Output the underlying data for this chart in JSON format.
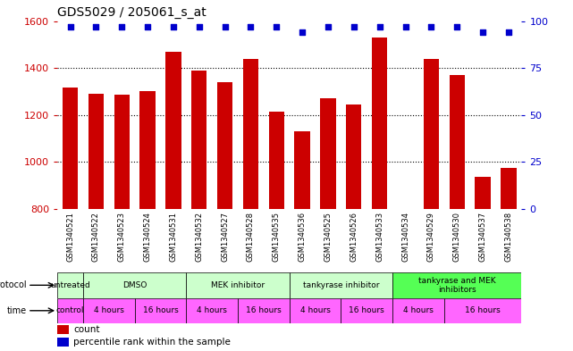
{
  "title": "GDS5029 / 205061_s_at",
  "samples": [
    "GSM1340521",
    "GSM1340522",
    "GSM1340523",
    "GSM1340524",
    "GSM1340531",
    "GSM1340532",
    "GSM1340527",
    "GSM1340528",
    "GSM1340535",
    "GSM1340536",
    "GSM1340525",
    "GSM1340526",
    "GSM1340533",
    "GSM1340534",
    "GSM1340529",
    "GSM1340530",
    "GSM1340537",
    "GSM1340538"
  ],
  "counts": [
    1315,
    1290,
    1285,
    1300,
    1470,
    1390,
    1340,
    1440,
    1215,
    1130,
    1270,
    1245,
    1530,
    800,
    1440,
    1370,
    935,
    975
  ],
  "percentiles": [
    97,
    97,
    97,
    97,
    97,
    97,
    97,
    97,
    97,
    94,
    97,
    97,
    97,
    97,
    97,
    97,
    94,
    94
  ],
  "ylim_left": [
    800,
    1600
  ],
  "ylim_right": [
    0,
    100
  ],
  "yticks_left": [
    800,
    1000,
    1200,
    1400,
    1600
  ],
  "yticks_right": [
    0,
    25,
    50,
    75,
    100
  ],
  "bar_color": "#cc0000",
  "dot_color": "#0000cc",
  "grid_yticks": [
    1000,
    1200,
    1400
  ],
  "bg_color": "#ffffff",
  "label_color_left": "#cc0000",
  "label_color_right": "#0000cc",
  "protocol_groups": [
    {
      "label": "untreated",
      "start": 0,
      "end": 1,
      "color": "#ccffcc"
    },
    {
      "label": "DMSO",
      "start": 1,
      "end": 5,
      "color": "#ccffcc"
    },
    {
      "label": "MEK inhibitor",
      "start": 5,
      "end": 9,
      "color": "#ccffcc"
    },
    {
      "label": "tankyrase inhibitor",
      "start": 9,
      "end": 13,
      "color": "#ccffcc"
    },
    {
      "label": "tankyrase and MEK\ninhibitors",
      "start": 13,
      "end": 18,
      "color": "#55ff55"
    }
  ],
  "time_groups": [
    {
      "label": "control",
      "start": 0,
      "end": 1
    },
    {
      "label": "4 hours",
      "start": 1,
      "end": 3
    },
    {
      "label": "16 hours",
      "start": 3,
      "end": 5
    },
    {
      "label": "4 hours",
      "start": 5,
      "end": 7
    },
    {
      "label": "16 hours",
      "start": 7,
      "end": 9
    },
    {
      "label": "4 hours",
      "start": 9,
      "end": 11
    },
    {
      "label": "16 hours",
      "start": 11,
      "end": 13
    },
    {
      "label": "4 hours",
      "start": 13,
      "end": 15
    },
    {
      "label": "16 hours",
      "start": 15,
      "end": 18
    }
  ],
  "time_color": "#ff66ff",
  "sample_bg_color": "#d3d3d3",
  "legend_count_label": "count",
  "legend_pct_label": "percentile rank within the sample"
}
